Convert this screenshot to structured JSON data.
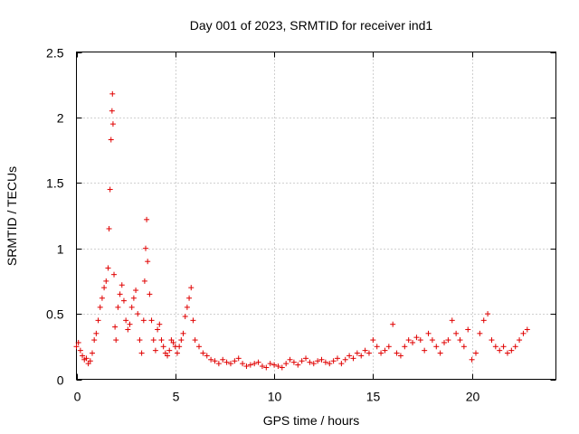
{
  "chart_data": {
    "type": "scatter",
    "title": "Day 001 of 2023, SRMTID for receiver ind1",
    "xlabel": "GPS time / hours",
    "ylabel": "SRMTID / TECUs",
    "xlim": [
      0,
      24.25
    ],
    "ylim": [
      0,
      2.5
    ],
    "x_ticks": [
      0,
      5,
      10,
      15,
      20
    ],
    "x_tick_labels": [
      "0",
      "5",
      "10",
      "15",
      "20"
    ],
    "y_ticks": [
      0,
      0.5,
      1,
      1.5,
      2,
      2.5
    ],
    "y_tick_labels": [
      "0",
      "0.5",
      "1",
      "1.5",
      "2",
      "2.5"
    ],
    "grid": true,
    "marker": "+",
    "series": [
      {
        "name": "SRMTID",
        "color": "#e00000",
        "x": [
          0.0,
          0.1,
          0.2,
          0.3,
          0.4,
          0.5,
          0.6,
          0.7,
          0.8,
          0.9,
          1.0,
          1.1,
          1.2,
          1.3,
          1.4,
          1.5,
          1.6,
          1.65,
          1.7,
          1.75,
          1.8,
          1.82,
          1.85,
          1.9,
          1.95,
          2.0,
          2.1,
          2.2,
          2.3,
          2.4,
          2.5,
          2.6,
          2.7,
          2.8,
          2.9,
          3.0,
          3.1,
          3.2,
          3.3,
          3.4,
          3.45,
          3.5,
          3.55,
          3.6,
          3.7,
          3.8,
          3.9,
          4.0,
          4.1,
          4.2,
          4.3,
          4.4,
          4.5,
          4.6,
          4.7,
          4.8,
          4.9,
          5.0,
          5.1,
          5.2,
          5.3,
          5.4,
          5.5,
          5.6,
          5.7,
          5.8,
          5.9,
          6.0,
          6.2,
          6.4,
          6.6,
          6.8,
          7.0,
          7.2,
          7.4,
          7.6,
          7.8,
          8.0,
          8.2,
          8.4,
          8.6,
          8.8,
          9.0,
          9.2,
          9.4,
          9.6,
          9.8,
          10.0,
          10.2,
          10.4,
          10.6,
          10.8,
          11.0,
          11.2,
          11.4,
          11.6,
          11.8,
          12.0,
          12.2,
          12.4,
          12.6,
          12.8,
          13.0,
          13.2,
          13.4,
          13.6,
          13.8,
          14.0,
          14.2,
          14.4,
          14.6,
          14.8,
          15.0,
          15.2,
          15.4,
          15.6,
          15.8,
          16.0,
          16.2,
          16.4,
          16.6,
          16.8,
          17.0,
          17.2,
          17.4,
          17.6,
          17.8,
          18.0,
          18.2,
          18.4,
          18.6,
          18.8,
          19.0,
          19.2,
          19.4,
          19.6,
          19.8,
          20.0,
          20.2,
          20.4,
          20.6,
          20.8,
          21.0,
          21.2,
          21.4,
          21.6,
          21.8,
          22.0,
          22.2,
          22.4,
          22.6,
          22.8
        ],
        "y": [
          0.25,
          0.28,
          0.22,
          0.18,
          0.15,
          0.16,
          0.12,
          0.14,
          0.2,
          0.3,
          0.35,
          0.45,
          0.55,
          0.62,
          0.7,
          0.75,
          0.85,
          1.15,
          1.45,
          1.83,
          2.05,
          2.18,
          1.95,
          0.8,
          0.4,
          0.3,
          0.55,
          0.65,
          0.72,
          0.6,
          0.45,
          0.38,
          0.42,
          0.55,
          0.62,
          0.68,
          0.5,
          0.3,
          0.2,
          0.45,
          0.75,
          1.0,
          1.22,
          0.9,
          0.65,
          0.45,
          0.3,
          0.22,
          0.38,
          0.42,
          0.3,
          0.25,
          0.2,
          0.18,
          0.22,
          0.3,
          0.28,
          0.25,
          0.2,
          0.25,
          0.3,
          0.35,
          0.48,
          0.55,
          0.62,
          0.7,
          0.45,
          0.3,
          0.25,
          0.2,
          0.18,
          0.15,
          0.14,
          0.12,
          0.15,
          0.13,
          0.12,
          0.14,
          0.16,
          0.12,
          0.1,
          0.11,
          0.12,
          0.13,
          0.1,
          0.09,
          0.12,
          0.11,
          0.1,
          0.09,
          0.12,
          0.15,
          0.13,
          0.11,
          0.14,
          0.16,
          0.13,
          0.12,
          0.14,
          0.15,
          0.13,
          0.12,
          0.14,
          0.16,
          0.12,
          0.15,
          0.18,
          0.16,
          0.2,
          0.18,
          0.22,
          0.2,
          0.3,
          0.25,
          0.2,
          0.22,
          0.25,
          0.42,
          0.2,
          0.18,
          0.25,
          0.3,
          0.28,
          0.32,
          0.3,
          0.22,
          0.35,
          0.3,
          0.25,
          0.2,
          0.28,
          0.3,
          0.45,
          0.35,
          0.3,
          0.25,
          0.38,
          0.15,
          0.2,
          0.35,
          0.45,
          0.5,
          0.3,
          0.25,
          0.22,
          0.25,
          0.2,
          0.22,
          0.25,
          0.3,
          0.35,
          0.38
        ]
      }
    ]
  }
}
